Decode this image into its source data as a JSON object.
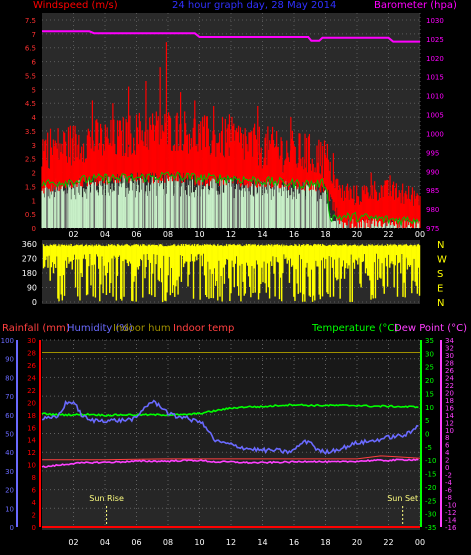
{
  "colors": {
    "background": "#000000",
    "plot_bg": "#2a2a2a",
    "wind": "#ff0000",
    "gust_fill": "#c8f0c8",
    "avg_line": "#00c000",
    "barometer": "#ff00ff",
    "direction": "#ffff00",
    "rain": "#ff0000",
    "humidity": "#6a6aff",
    "indoor_hum": "#a09000",
    "indoor_temp": "#ff4040",
    "temperature": "#00ff00",
    "dew_point": "#ff40ff",
    "header_blue": "#3030ff",
    "sun_label": "#ffff80"
  },
  "chart_data": [
    {
      "type": "line",
      "title": "24 hour graph day, 28 May 2014",
      "left_axis_label": "Windspeed (m/s)",
      "right_axis_label": "Barometer (hpa)",
      "left_ticks": [
        "0",
        "0.5",
        "1",
        "1.5",
        "2",
        "2.5",
        "3",
        "3.5",
        "4",
        "4.5",
        "5",
        "5.5",
        "6",
        "6.5",
        "7",
        "7.5"
      ],
      "left_range": [
        0,
        7.5
      ],
      "right_ticks": [
        "975",
        "980",
        "985",
        "990",
        "995",
        "1000",
        "1005",
        "1010",
        "1015",
        "1020",
        "1025",
        "1030"
      ],
      "right_range": [
        975,
        1030
      ],
      "x_ticks": [
        "02",
        "04",
        "06",
        "08",
        "10",
        "12",
        "14",
        "16",
        "18",
        "20",
        "22",
        "00"
      ],
      "x_range": [
        0,
        24
      ],
      "series": [
        {
          "name": "barometer",
          "x": [
            0,
            3,
            3.3,
            9.7,
            10,
            16.9,
            17.1,
            17.6,
            17.8,
            22,
            22.3,
            24
          ],
          "y": [
            1027,
            1027,
            1026.5,
            1026.5,
            1025.5,
            1025.5,
            1024.5,
            1024.5,
            1025.3,
            1025.3,
            1024.3,
            1024.3
          ]
        },
        {
          "name": "windspeed_avg",
          "x": [
            0,
            1,
            2,
            3,
            4,
            5,
            6,
            7,
            8,
            9,
            10,
            11,
            12,
            13,
            14,
            15,
            16,
            17,
            18,
            19,
            20,
            21,
            22,
            23,
            24
          ],
          "y": [
            2.6,
            2.6,
            2.7,
            2.9,
            2.8,
            2.9,
            3.1,
            3.2,
            3.2,
            3.2,
            3.0,
            2.9,
            2.9,
            2.7,
            2.6,
            2.5,
            2.4,
            2.3,
            2.2,
            1.1,
            1.0,
            1.2,
            1.2,
            1.0,
            1.0
          ]
        },
        {
          "name": "windspeed_low",
          "x": [
            0,
            1,
            2,
            3,
            4,
            5,
            6,
            7,
            8,
            9,
            10,
            11,
            12,
            13,
            14,
            15,
            16,
            17,
            18,
            19,
            20,
            21,
            22,
            23,
            24
          ],
          "y": [
            1.6,
            1.7,
            1.8,
            1.9,
            1.9,
            2.0,
            2.0,
            2.0,
            2.0,
            2.0,
            1.9,
            1.9,
            1.9,
            1.8,
            1.8,
            1.8,
            1.7,
            1.7,
            1.6,
            0.4,
            0.3,
            0.4,
            0.4,
            0.3,
            0.3
          ]
        },
        {
          "name": "gust_spikes",
          "x": [
            1.8,
            3.2,
            4.5,
            5.5,
            6.6,
            7.5,
            7.9,
            8.8,
            9.7,
            10.9,
            11.9,
            12.9,
            13.7,
            14.9,
            15.8,
            16.7,
            17.7,
            18.5,
            19.4,
            20.9,
            22.1,
            22.9
          ],
          "y": [
            3.5,
            4.6,
            4.5,
            5.1,
            5.3,
            5.8,
            6.7,
            4.9,
            4.6,
            4.4,
            4.1,
            3.6,
            4.4,
            3.5,
            4.0,
            3.4,
            3.1,
            2.7,
            1.6,
            2.0,
            1.9,
            1.6
          ]
        },
        {
          "name": "avg_wind_green",
          "x": [
            0,
            2,
            4,
            6,
            8,
            10,
            12,
            14,
            16,
            18,
            18.3,
            20,
            22,
            24
          ],
          "y": [
            1.6,
            1.7,
            1.8,
            1.8,
            1.9,
            1.8,
            1.8,
            1.7,
            1.6,
            1.6,
            0.4,
            0.4,
            0.3,
            0.3
          ]
        }
      ]
    },
    {
      "type": "scatter",
      "left_ticks": [
        "0",
        "90",
        "180",
        "270",
        "360"
      ],
      "left_range": [
        0,
        360
      ],
      "right_labels": [
        "N",
        "W",
        "S",
        "E",
        "N"
      ],
      "x_range": [
        0,
        24
      ],
      "series": [
        {
          "name": "wind_direction",
          "x": [
            0,
            24
          ],
          "y": [
            360,
            360
          ]
        }
      ]
    },
    {
      "type": "line",
      "legend": [
        "Rainfall (mm)",
        "Humidity (%)",
        "Indoor hum",
        "Indoor temp",
        "Temperature (°C)",
        "Dew Point (°C)"
      ],
      "humidity_ticks": [
        "0",
        "10",
        "20",
        "30",
        "40",
        "50",
        "60",
        "70",
        "80",
        "90",
        "100"
      ],
      "humidity_range": [
        0,
        100
      ],
      "rain_ticks": [
        "0",
        "2",
        "4",
        "6",
        "8",
        "10",
        "12",
        "14",
        "16",
        "18",
        "20",
        "22",
        "24",
        "26",
        "28",
        "30"
      ],
      "rain_range": [
        0,
        30
      ],
      "temp_ticks": [
        "-35",
        "-30",
        "-25",
        "-20",
        "-15",
        "-10",
        "-5",
        "0",
        "5",
        "10",
        "15",
        "20",
        "25",
        "30",
        "35"
      ],
      "temp_range": [
        -35,
        35
      ],
      "dew_ticks": [
        "-16",
        "-14",
        "-12",
        "-10",
        "-8",
        "-6",
        "-4",
        "-2",
        "0",
        "2",
        "4",
        "6",
        "8",
        "10",
        "12",
        "14",
        "16",
        "18",
        "20",
        "22",
        "24",
        "26",
        "28",
        "30",
        "32",
        "34"
      ],
      "dew_range": [
        -16,
        34
      ],
      "x_ticks": [
        "02",
        "04",
        "06",
        "08",
        "10",
        "12",
        "14",
        "16",
        "18",
        "20",
        "22",
        "00"
      ],
      "x_range": [
        0,
        24
      ],
      "annotations": [
        {
          "label": "Sun Rise",
          "x": 4.1
        },
        {
          "label": "Sun Set",
          "x": 22.9
        }
      ],
      "series": [
        {
          "name": "Temperature (°C)",
          "x": [
            0,
            1,
            2,
            3,
            4,
            5,
            6,
            7,
            8,
            9,
            10,
            11,
            12,
            13,
            14,
            15,
            16,
            17,
            18,
            19,
            20,
            21,
            22,
            23,
            24
          ],
          "y": [
            7.5,
            7,
            7,
            7.2,
            6.8,
            7,
            7,
            7,
            7,
            7,
            7.5,
            8.5,
            9.5,
            10,
            10,
            10.5,
            10.8,
            10.5,
            10.5,
            10.5,
            10.5,
            10.2,
            10.2,
            10,
            10
          ]
        },
        {
          "name": "Humidity (%)",
          "x": [
            0,
            0.5,
            1,
            1.5,
            2,
            2.5,
            3,
            4,
            5,
            6,
            6.5,
            7,
            7.5,
            8,
            8.5,
            9,
            9.5,
            10,
            10.5,
            11,
            12,
            13,
            14,
            15,
            15.5,
            16,
            16.5,
            17,
            17.5,
            18,
            19,
            20,
            21,
            22,
            23,
            23.5,
            24
          ],
          "y": [
            58,
            58,
            59,
            66,
            67,
            60,
            57,
            57,
            57,
            58,
            64,
            67,
            65,
            61,
            59,
            59,
            57,
            57,
            52,
            46,
            44,
            42,
            41,
            41,
            40,
            41,
            45,
            46,
            41,
            40,
            42,
            45,
            46,
            48,
            49,
            51,
            56
          ]
        },
        {
          "name": "Dew Point (°C)",
          "x": [
            0,
            1,
            2,
            3,
            4,
            5,
            6,
            7,
            8,
            9,
            10,
            11,
            12,
            13,
            14,
            15,
            16,
            17,
            18,
            19,
            20,
            21,
            22,
            23,
            24
          ],
          "y": [
            0,
            0.5,
            1,
            1.2,
            1.3,
            1.4,
            1.6,
            1.6,
            1.6,
            1.8,
            1.8,
            1.4,
            1.4,
            1.2,
            1.2,
            1.3,
            1.4,
            1.6,
            1.4,
            1.4,
            1.6,
            1.8,
            1.8,
            2,
            2
          ]
        },
        {
          "name": "Indoor temp",
          "x": [
            0,
            4,
            8,
            12,
            16,
            20,
            21.5,
            22.5,
            24
          ],
          "y": [
            2,
            2,
            2.2,
            2.2,
            2.2,
            2.2,
            3,
            2.8,
            2.4
          ]
        },
        {
          "name": "Indoor hum",
          "x": [
            0,
            24
          ],
          "y": [
            28,
            28
          ]
        },
        {
          "name": "Rainfall (mm)",
          "x": [
            0,
            24
          ],
          "y": [
            0,
            0
          ]
        }
      ]
    }
  ]
}
